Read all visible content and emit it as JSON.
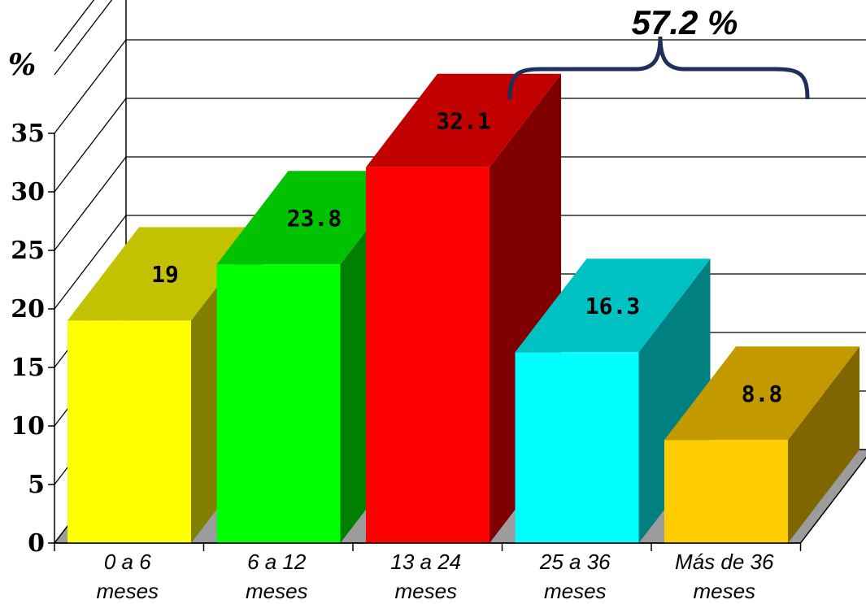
{
  "chart_data": {
    "type": "bar",
    "title": "",
    "xlabel": "",
    "ylabel": "%",
    "ylim": [
      0,
      35
    ],
    "yticks": [
      "0",
      "5",
      "10",
      "15",
      "20",
      "25",
      "30",
      "35"
    ],
    "grid": true,
    "legend": "none",
    "categories": [
      [
        "0 a 6",
        "meses"
      ],
      [
        "6 a 12",
        "meses"
      ],
      [
        "13 a 24",
        "meses"
      ],
      [
        "25 a 36",
        "meses"
      ],
      [
        "Más de 36",
        "meses"
      ]
    ],
    "values": [
      19,
      23.8,
      32.1,
      16.3,
      8.8
    ],
    "value_labels": [
      "19",
      "23.8",
      "32.1",
      "16.3",
      "8.8"
    ],
    "colors": {
      "front": [
        "#ffff00",
        "#00ff00",
        "#ff0000",
        "#00ffff",
        "#ffcc00"
      ],
      "top": [
        "#c2c200",
        "#00c200",
        "#c20000",
        "#00c2c2",
        "#c29a00"
      ],
      "side": [
        "#808000",
        "#008000",
        "#800000",
        "#008080",
        "#806600"
      ],
      "floor": "#9c9c9c",
      "bracket": "#1f2f5c"
    },
    "annotation": {
      "text": "57.2 %",
      "spans_categories": [
        2,
        4
      ]
    }
  }
}
